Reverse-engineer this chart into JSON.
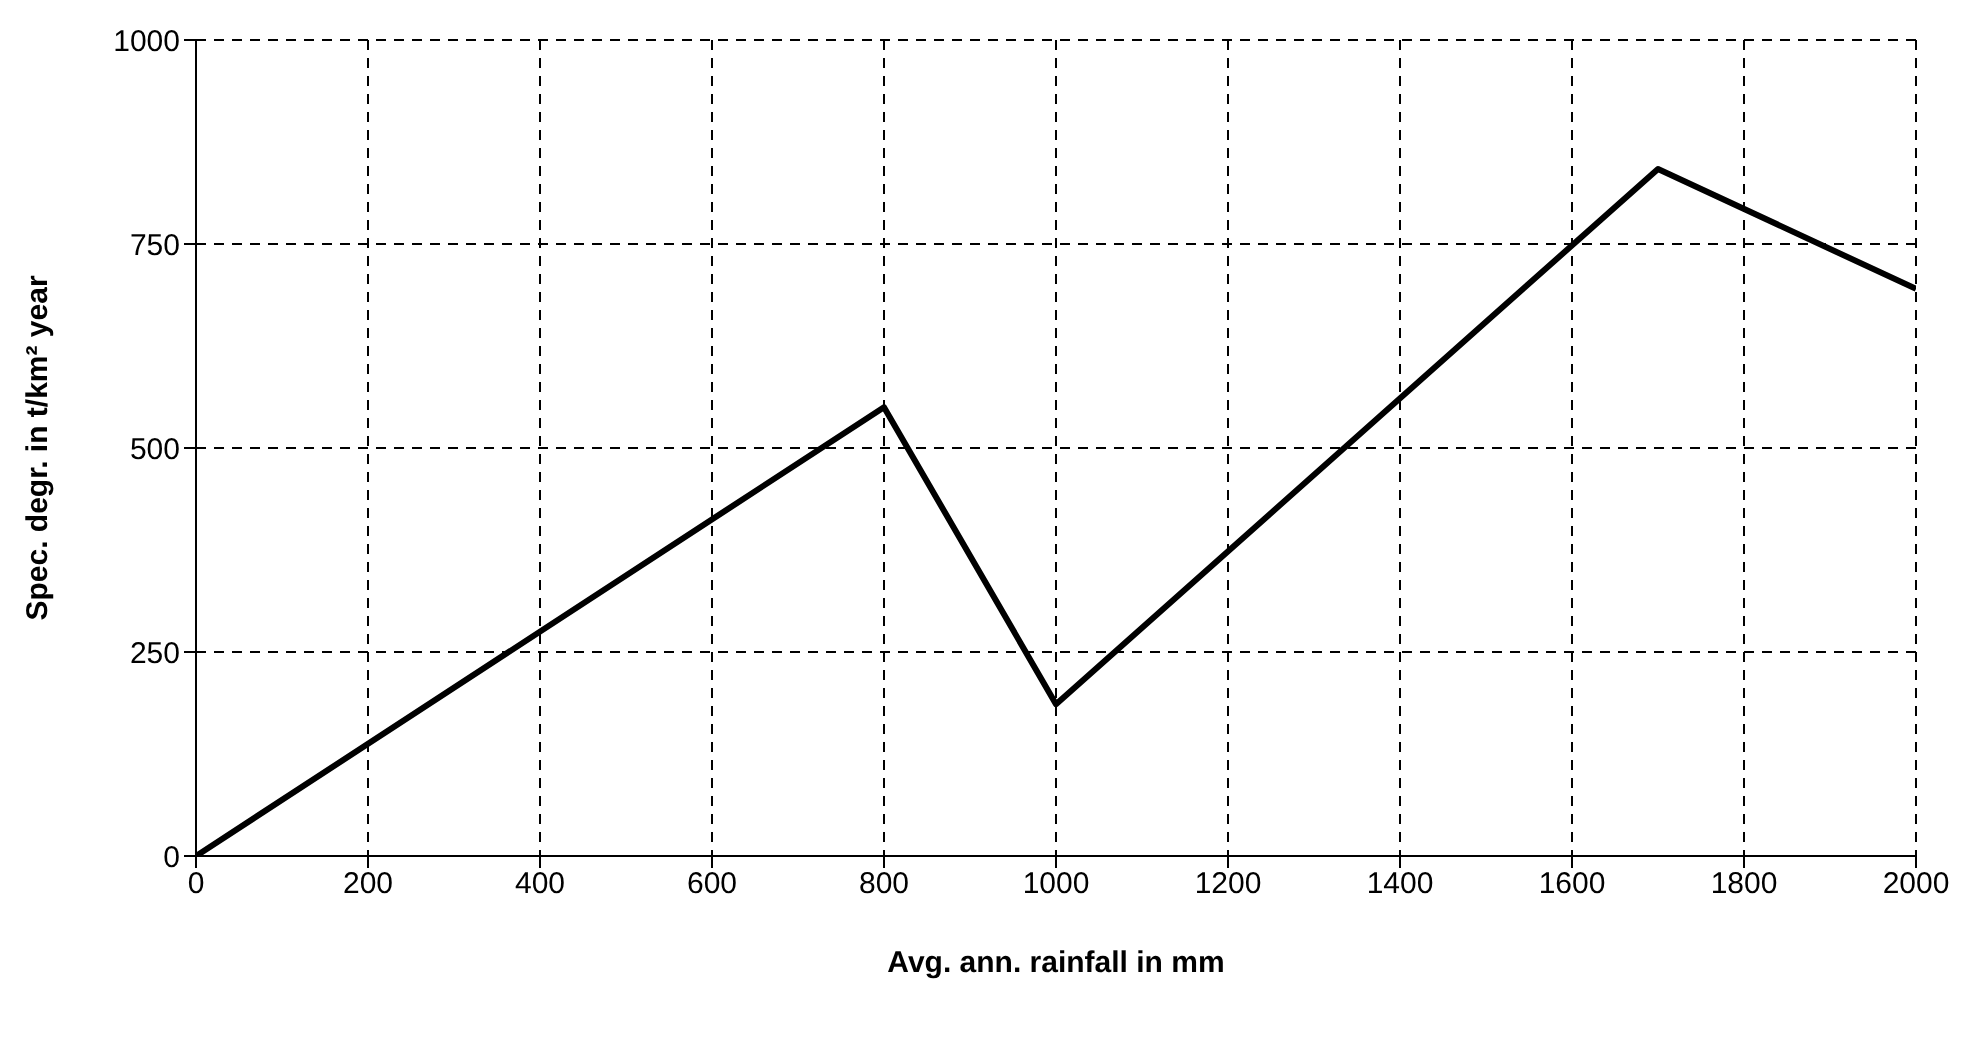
{
  "chart_data": {
    "type": "line",
    "xlabel": "Avg. ann. rainfall in mm",
    "ylabel": "Spec. degr. in t/km² year",
    "x": [
      0,
      800,
      1000,
      1700,
      2000
    ],
    "series": [
      {
        "color": "#000000",
        "values": [
          0,
          550,
          186,
          842,
          695
        ]
      }
    ],
    "xlim": [
      0,
      2000
    ],
    "xticks": [
      0,
      200,
      400,
      600,
      800,
      1000,
      1200,
      1400,
      1600,
      1800,
      2000
    ],
    "ylim": [
      0,
      1000
    ],
    "yticks": [
      0,
      250,
      500,
      750,
      1000
    ],
    "grid": true,
    "marker": "none",
    "line_style": "solid"
  }
}
